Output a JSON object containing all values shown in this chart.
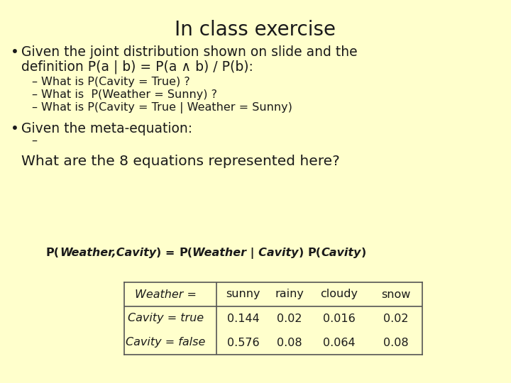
{
  "background_color": "#ffffcc",
  "title": "In class exercise",
  "title_fontsize": 20,
  "bullet1_line1": "Given the joint distribution shown on slide and the",
  "bullet1_line2": "definition P(a | b) = P(a ∧ b) / P(b):",
  "sub1": "What is P(Cavity = True) ?",
  "sub2": "What is  P(Weather = Sunny) ?",
  "sub3": "What is P(Cavity = True | Weather = Sunny)",
  "bullet2": "Given the meta-equation:",
  "question": "What are the 8 equations represented here?",
  "table_header": [
    "Weather =",
    "sunny",
    "rainy",
    "cloudy",
    "snow"
  ],
  "table_row1_label": "Cavity = true",
  "table_row2_label": "Cavity = false",
  "table_row1_vals": [
    "0.144",
    "0.02",
    "0.016",
    "0.02"
  ],
  "table_row2_vals": [
    "0.576",
    "0.08",
    "0.064",
    "0.08"
  ],
  "body_fontsize": 13.5,
  "sub_fontsize": 11.5,
  "table_fontsize": 11.5,
  "text_color": "#1a1a1a"
}
